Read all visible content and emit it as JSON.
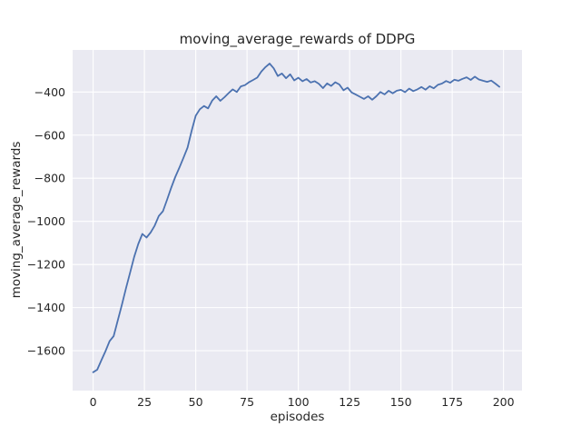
{
  "chart_data": {
    "type": "line",
    "title": "moving_average_rewards of DDPG",
    "xlabel": "episodes",
    "ylabel": "moving_average_rewards",
    "xlim": [
      -10,
      209
    ],
    "ylim": [
      -1785,
      -205
    ],
    "grid": true,
    "legend": "none",
    "xticks": {
      "values": [
        0,
        25,
        50,
        75,
        100,
        125,
        150,
        175,
        200
      ],
      "labels": [
        "0",
        "25",
        "50",
        "75",
        "100",
        "125",
        "150",
        "175",
        "200"
      ]
    },
    "yticks": {
      "values": [
        -400,
        -600,
        -800,
        -1000,
        -1200,
        -1400,
        -1600
      ],
      "labels": [
        "−400",
        "−600",
        "−800",
        "−1000",
        "−1200",
        "−1400",
        "−1600"
      ]
    },
    "colors": {
      "line": "#4c72b0",
      "plot_background": "#eaeaf2",
      "grid": "#ffffff",
      "figure_background": "#ffffff",
      "text": "#262626"
    },
    "series": [
      {
        "name": "DDPG moving average rewards",
        "color": "#4c72b0",
        "x": [
          0,
          2,
          4,
          6,
          8,
          10,
          12,
          14,
          16,
          18,
          20,
          22,
          24,
          26,
          28,
          30,
          32,
          34,
          36,
          38,
          40,
          42,
          44,
          46,
          48,
          50,
          52,
          54,
          56,
          58,
          60,
          62,
          64,
          66,
          68,
          70,
          72,
          74,
          76,
          78,
          80,
          82,
          84,
          86,
          88,
          90,
          92,
          94,
          96,
          98,
          100,
          102,
          104,
          106,
          108,
          110,
          112,
          114,
          116,
          118,
          120,
          122,
          124,
          126,
          128,
          130,
          132,
          134,
          136,
          138,
          140,
          142,
          144,
          146,
          148,
          150,
          152,
          154,
          156,
          158,
          160,
          162,
          164,
          166,
          168,
          170,
          172,
          174,
          176,
          178,
          180,
          182,
          184,
          186,
          188,
          190,
          192,
          194,
          196,
          198
        ],
        "y": [
          -1700,
          -1688,
          -1645,
          -1602,
          -1556,
          -1532,
          -1460,
          -1388,
          -1310,
          -1238,
          -1165,
          -1105,
          -1058,
          -1075,
          -1052,
          -1020,
          -975,
          -953,
          -900,
          -845,
          -795,
          -752,
          -705,
          -658,
          -580,
          -510,
          -480,
          -465,
          -476,
          -440,
          -420,
          -441,
          -424,
          -405,
          -388,
          -400,
          -374,
          -368,
          -354,
          -344,
          -333,
          -305,
          -284,
          -268,
          -290,
          -326,
          -314,
          -336,
          -318,
          -346,
          -334,
          -350,
          -340,
          -356,
          -350,
          -362,
          -382,
          -360,
          -372,
          -355,
          -365,
          -392,
          -380,
          -402,
          -412,
          -422,
          -432,
          -420,
          -436,
          -420,
          -400,
          -411,
          -394,
          -406,
          -394,
          -390,
          -401,
          -384,
          -396,
          -388,
          -377,
          -389,
          -373,
          -383,
          -367,
          -361,
          -349,
          -357,
          -343,
          -348,
          -339,
          -332,
          -344,
          -329,
          -342,
          -348,
          -353,
          -347,
          -361,
          -376
        ]
      }
    ]
  }
}
